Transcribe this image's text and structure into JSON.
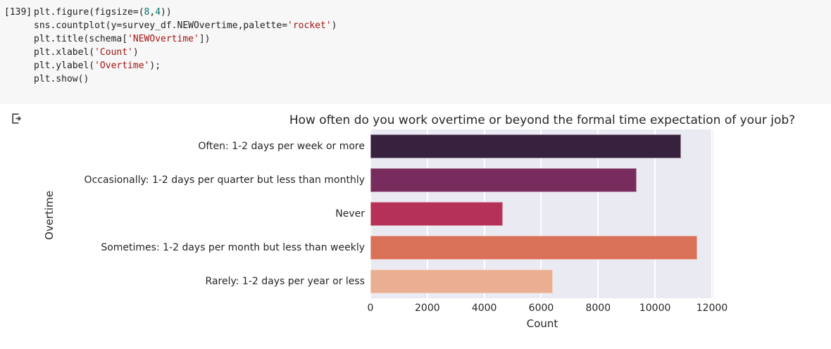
{
  "notebook": {
    "execution_count": "[139]",
    "code_lines": [
      [
        {
          "t": "plt.figure(figsize=(",
          "c": "p"
        },
        {
          "t": "8",
          "c": "n"
        },
        {
          "t": ",",
          "c": "p"
        },
        {
          "t": "4",
          "c": "n"
        },
        {
          "t": "))",
          "c": "p"
        }
      ],
      [
        {
          "t": "sns.countplot(y=survey_df.NEWOvertime,palette=",
          "c": "p"
        },
        {
          "t": "'rocket'",
          "c": "s"
        },
        {
          "t": ")",
          "c": "p"
        }
      ],
      [
        {
          "t": "plt.title(schema[",
          "c": "p"
        },
        {
          "t": "'NEWOvertime'",
          "c": "s"
        },
        {
          "t": "])",
          "c": "p"
        }
      ],
      [
        {
          "t": "plt.xlabel(",
          "c": "p"
        },
        {
          "t": "'Count'",
          "c": "s"
        },
        {
          "t": ")",
          "c": "p"
        }
      ],
      [
        {
          "t": "plt.ylabel(",
          "c": "p"
        },
        {
          "t": "'Overtime'",
          "c": "s"
        },
        {
          "t": ");",
          "c": "p"
        }
      ],
      [
        {
          "t": "plt.show()",
          "c": "p"
        }
      ]
    ]
  },
  "chart_data": {
    "type": "bar",
    "orientation": "horizontal",
    "title": "How often do you work overtime or beyond the formal time expectation of your job?",
    "xlabel": "Count",
    "ylabel": "Overtime",
    "categories": [
      "Often: 1-2 days per week or more",
      "Occasionally: 1-2 days per quarter but less than monthly",
      "Never",
      "Sometimes: 1-2 days per month but less than weekly",
      "Rarely: 1-2 days per year or less"
    ],
    "values": [
      10900,
      9360,
      4650,
      11480,
      6400
    ],
    "xticks": [
      0,
      2000,
      4000,
      6000,
      8000,
      10000,
      12000
    ],
    "xlim": [
      0,
      12050
    ],
    "grid": true,
    "legend_position": "none",
    "palette": "rocket",
    "bar_colors": [
      "#38203f",
      "#772c5d",
      "#b53157",
      "#d97058",
      "#eaaf92"
    ],
    "plot_bg": "#eaeaf2",
    "grid_color": "#ffffff",
    "text_color": "#262626"
  }
}
